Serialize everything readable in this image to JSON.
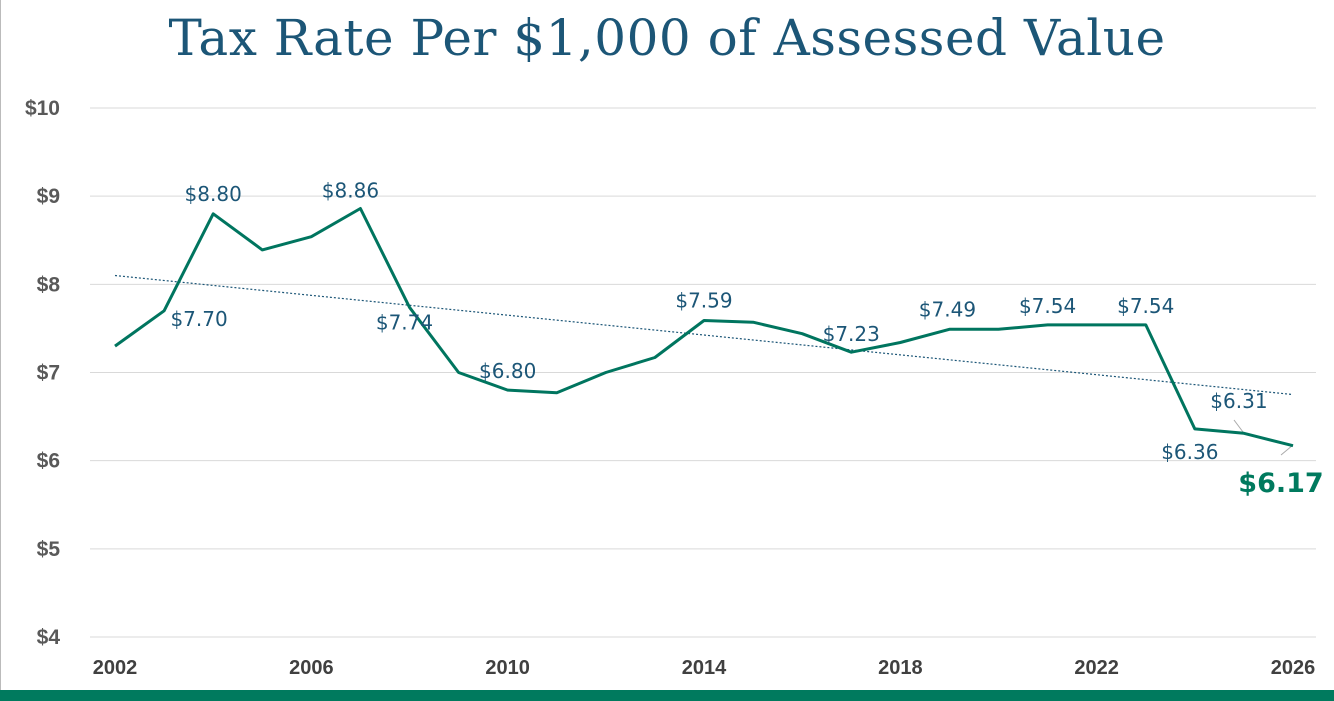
{
  "chart_data": {
    "type": "line",
    "title": "Tax Rate Per $1,000 of Assessed Value",
    "xlabel": "",
    "ylabel": "",
    "x": [
      2002,
      2003,
      2004,
      2005,
      2006,
      2007,
      2008,
      2009,
      2010,
      2011,
      2012,
      2013,
      2014,
      2015,
      2016,
      2017,
      2018,
      2019,
      2020,
      2021,
      2022,
      2023,
      2024,
      2025,
      2026
    ],
    "values": [
      7.3,
      7.7,
      8.8,
      8.39,
      8.54,
      8.86,
      7.74,
      7.0,
      6.8,
      6.77,
      7.0,
      7.17,
      7.59,
      7.57,
      7.44,
      7.23,
      7.34,
      7.49,
      7.49,
      7.54,
      7.54,
      7.54,
      6.36,
      6.31,
      6.17
    ],
    "data_labels": [
      {
        "x": 2003,
        "text": "$7.70"
      },
      {
        "x": 2004,
        "text": "$8.80"
      },
      {
        "x": 2007,
        "text": "$8.86"
      },
      {
        "x": 2008,
        "text": "$7.74"
      },
      {
        "x": 2010,
        "text": "$6.80"
      },
      {
        "x": 2014,
        "text": "$7.59"
      },
      {
        "x": 2017,
        "text": "$7.23"
      },
      {
        "x": 2019,
        "text": "$7.49"
      },
      {
        "x": 2021,
        "text": "$7.54"
      },
      {
        "x": 2023,
        "text": "$7.54"
      },
      {
        "x": 2024,
        "text": "$6.36"
      },
      {
        "x": 2025,
        "text": "$6.31"
      },
      {
        "x": 2026,
        "text": "$6.17",
        "emphasis": true
      }
    ],
    "trendline": {
      "type": "linear",
      "start": [
        2002,
        8.1
      ],
      "end": [
        2026,
        6.75
      ],
      "style": "dotted"
    },
    "xlim": [
      2002,
      2026
    ],
    "ylim": [
      4,
      10
    ],
    "x_ticks": [
      "2002",
      "2006",
      "2010",
      "2014",
      "2018",
      "2022",
      "2026"
    ],
    "y_ticks": [
      "$4",
      "$5",
      "$6",
      "$7",
      "$8",
      "$9",
      "$10"
    ],
    "grid": "horizontal",
    "legend": "none",
    "colors": {
      "line": "#00755f",
      "trend": "#1c5677",
      "labels": "#1c5677",
      "title": "#1c5677",
      "grid": "#d9d9d9",
      "accent_bar": "#007a5e"
    }
  }
}
